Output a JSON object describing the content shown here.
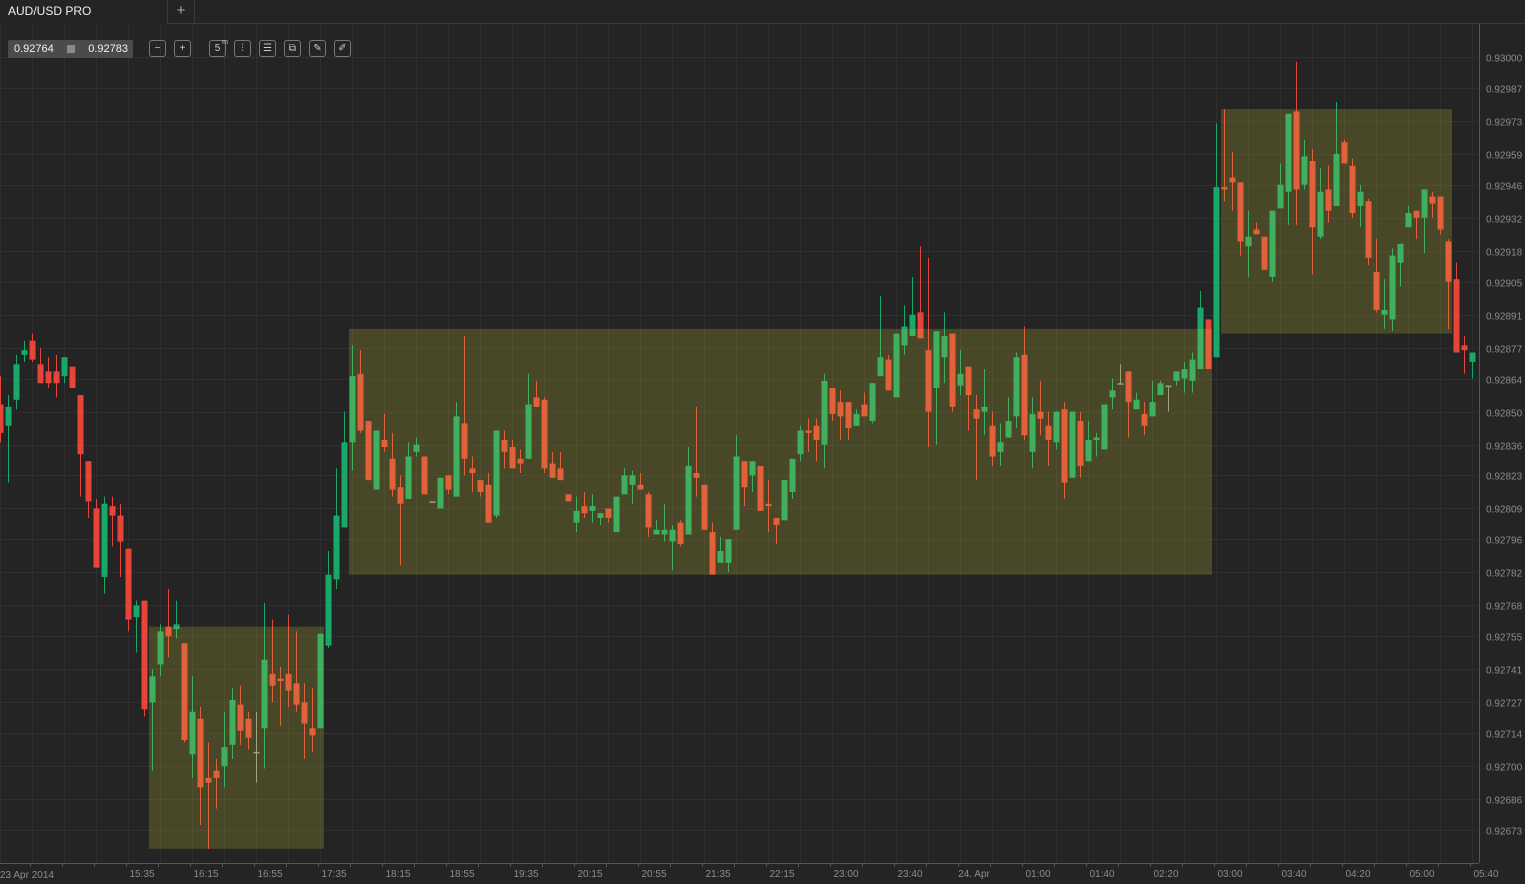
{
  "tabs": [
    {
      "label": "AUD/USD PRO",
      "active": true
    }
  ],
  "add_tab_label": "+",
  "quote": {
    "bid": "0.92764",
    "ask": "0.92783"
  },
  "toolbar": [
    {
      "icon": "zoom-out-icon",
      "glyph": "−"
    },
    {
      "icon": "zoom-in-icon",
      "glyph": "+"
    },
    {
      "icon": "period-icon",
      "glyph": "5",
      "sup": "m"
    },
    {
      "icon": "candles-icon",
      "glyph": "⫶"
    },
    {
      "icon": "indicators-icon",
      "glyph": "☰"
    },
    {
      "icon": "copy-icon",
      "glyph": "⧉"
    },
    {
      "icon": "edit-icon",
      "glyph": "✎"
    },
    {
      "icon": "draw-icon",
      "glyph": "✐"
    }
  ],
  "colors": {
    "background": "#242424",
    "grid": "#2f2f2f",
    "up": "#1aa868",
    "down": "#e8453a",
    "axis_text": "#8c8c8c",
    "zone": "#c8c83c"
  },
  "chart_data": {
    "type": "candlestick",
    "symbol": "AUD/USD PRO",
    "interval": "5m",
    "grid": true,
    "ylim": [
      0.92659,
      0.93014
    ],
    "y_ticks": [
      "0.93000",
      "0.92987",
      "0.92973",
      "0.92959",
      "0.92946",
      "0.92932",
      "0.92918",
      "0.92905",
      "0.92891",
      "0.92877",
      "0.92864",
      "0.92850",
      "0.92836",
      "0.92823",
      "0.92809",
      "0.92796",
      "0.92782",
      "0.92768",
      "0.92755",
      "0.92741",
      "0.92727",
      "0.92714",
      "0.92700",
      "0.92686",
      "0.92673"
    ],
    "x_start_label": "23 Apr 2014",
    "x_ticks": [
      "15:35",
      "16:15",
      "16:55",
      "17:35",
      "18:15",
      "18:55",
      "19:35",
      "20:15",
      "20:55",
      "21:35",
      "22:15",
      "23:00",
      "23:40",
      "24. Apr",
      "01:00",
      "01:40",
      "02:20",
      "03:00",
      "03:40",
      "04:20",
      "05:00",
      "05:40"
    ],
    "ohlc_fields": [
      "open",
      "high",
      "low",
      "close"
    ],
    "candles": [
      [
        0.92853,
        0.92865,
        0.92837,
        0.92841
      ],
      [
        0.92844,
        0.92857,
        0.9282,
        0.92852
      ],
      [
        0.92855,
        0.92874,
        0.92851,
        0.9287
      ],
      [
        0.92874,
        0.9288,
        0.92871,
        0.92876
      ],
      [
        0.9288,
        0.92883,
        0.92871,
        0.92872
      ],
      [
        0.9287,
        0.92877,
        0.92862,
        0.92862
      ],
      [
        0.92867,
        0.92873,
        0.9286,
        0.92862
      ],
      [
        0.92867,
        0.92874,
        0.92856,
        0.92862
      ],
      [
        0.92865,
        0.92873,
        0.92862,
        0.92873
      ],
      [
        0.92869,
        0.92869,
        0.9286,
        0.9286
      ],
      [
        0.92857,
        0.92857,
        0.92814,
        0.92832
      ],
      [
        0.92829,
        0.92829,
        0.92805,
        0.92812
      ],
      [
        0.92809,
        0.92813,
        0.92784,
        0.92784
      ],
      [
        0.9278,
        0.92814,
        0.92773,
        0.92811
      ],
      [
        0.9281,
        0.92814,
        0.92793,
        0.92806
      ],
      [
        0.92806,
        0.92811,
        0.9278,
        0.92795
      ],
      [
        0.92792,
        0.92792,
        0.92757,
        0.92762
      ],
      [
        0.92763,
        0.9277,
        0.92748,
        0.92768
      ],
      [
        0.9277,
        0.9277,
        0.92721,
        0.92724
      ],
      [
        0.92727,
        0.92741,
        0.92698,
        0.92738
      ],
      [
        0.92743,
        0.9276,
        0.92738,
        0.92757
      ],
      [
        0.92759,
        0.92775,
        0.92746,
        0.92755
      ],
      [
        0.92758,
        0.9277,
        0.92754,
        0.9276
      ],
      [
        0.92752,
        0.92752,
        0.9271,
        0.92711
      ],
      [
        0.92705,
        0.92738,
        0.92695,
        0.92723
      ],
      [
        0.9272,
        0.92725,
        0.92675,
        0.92691
      ],
      [
        0.92695,
        0.9271,
        0.92665,
        0.92693
      ],
      [
        0.92698,
        0.92703,
        0.92682,
        0.92695
      ],
      [
        0.927,
        0.92723,
        0.92691,
        0.92708
      ],
      [
        0.92709,
        0.92733,
        0.92703,
        0.92728
      ],
      [
        0.92726,
        0.92734,
        0.92709,
        0.92715
      ],
      [
        0.9272,
        0.92723,
        0.92707,
        0.92712
      ],
      [
        0.92706,
        0.92723,
        0.92693,
        0.92706
      ],
      [
        0.92716,
        0.92769,
        0.92699,
        0.92745
      ],
      [
        0.92739,
        0.92762,
        0.92727,
        0.92734
      ],
      [
        0.92737,
        0.92742,
        0.92717,
        0.92736
      ],
      [
        0.92739,
        0.92764,
        0.92725,
        0.92732
      ],
      [
        0.92735,
        0.92757,
        0.92723,
        0.92726
      ],
      [
        0.92727,
        0.92735,
        0.92703,
        0.92718
      ],
      [
        0.92716,
        0.92733,
        0.92706,
        0.92713
      ],
      [
        0.92716,
        0.92756,
        0.92716,
        0.92756
      ],
      [
        0.92751,
        0.92791,
        0.9275,
        0.92781
      ],
      [
        0.92779,
        0.92826,
        0.92775,
        0.92806
      ],
      [
        0.92801,
        0.9285,
        0.92801,
        0.92837
      ],
      [
        0.92837,
        0.92878,
        0.92825,
        0.92865
      ],
      [
        0.92866,
        0.92876,
        0.92841,
        0.92842
      ],
      [
        0.92846,
        0.92846,
        0.92821,
        0.92821
      ],
      [
        0.92817,
        0.92842,
        0.92817,
        0.92842
      ],
      [
        0.92838,
        0.92849,
        0.92833,
        0.92835
      ],
      [
        0.9283,
        0.92841,
        0.92814,
        0.92817
      ],
      [
        0.92818,
        0.92823,
        0.92785,
        0.92811
      ],
      [
        0.92813,
        0.92837,
        0.92813,
        0.92831
      ],
      [
        0.92833,
        0.92839,
        0.92831,
        0.92836
      ],
      [
        0.92831,
        0.92831,
        0.92815,
        0.92815
      ],
      [
        0.92812,
        0.92812,
        0.92812,
        0.92812
      ],
      [
        0.92809,
        0.92822,
        0.92809,
        0.92822
      ],
      [
        0.92823,
        0.92823,
        0.92815,
        0.92817
      ],
      [
        0.92814,
        0.92854,
        0.92814,
        0.92848
      ],
      [
        0.92845,
        0.92882,
        0.92823,
        0.9283
      ],
      [
        0.92826,
        0.92831,
        0.92816,
        0.92824
      ],
      [
        0.92821,
        0.92821,
        0.92814,
        0.92816
      ],
      [
        0.92819,
        0.92824,
        0.92803,
        0.92803
      ],
      [
        0.92806,
        0.92842,
        0.92805,
        0.92842
      ],
      [
        0.92838,
        0.92842,
        0.92826,
        0.92833
      ],
      [
        0.92835,
        0.92838,
        0.92826,
        0.92826
      ],
      [
        0.9283,
        0.92834,
        0.92824,
        0.92828
      ],
      [
        0.9283,
        0.92866,
        0.9283,
        0.92853
      ],
      [
        0.92856,
        0.92863,
        0.92852,
        0.92852
      ],
      [
        0.92855,
        0.92856,
        0.92824,
        0.92826
      ],
      [
        0.92828,
        0.92833,
        0.92822,
        0.92822
      ],
      [
        0.92826,
        0.92833,
        0.92821,
        0.92821
      ],
      [
        0.92815,
        0.92815,
        0.92812,
        0.92812
      ],
      [
        0.92803,
        0.92814,
        0.92799,
        0.92808
      ],
      [
        0.9281,
        0.92816,
        0.92805,
        0.92807
      ],
      [
        0.92808,
        0.92815,
        0.92803,
        0.9281
      ],
      [
        0.92805,
        0.92807,
        0.92802,
        0.92807
      ],
      [
        0.92809,
        0.92809,
        0.92803,
        0.92805
      ],
      [
        0.92799,
        0.92814,
        0.92799,
        0.92814
      ],
      [
        0.92815,
        0.92826,
        0.92815,
        0.92823
      ],
      [
        0.92819,
        0.92825,
        0.92811,
        0.92823
      ],
      [
        0.92819,
        0.92824,
        0.92817,
        0.92817
      ],
      [
        0.92815,
        0.92816,
        0.92797,
        0.92801
      ],
      [
        0.92798,
        0.92804,
        0.92798,
        0.928
      ],
      [
        0.92798,
        0.92811,
        0.92795,
        0.928
      ],
      [
        0.92795,
        0.92802,
        0.92783,
        0.928
      ],
      [
        0.92803,
        0.92804,
        0.92793,
        0.92794
      ],
      [
        0.92798,
        0.92835,
        0.92798,
        0.92827
      ],
      [
        0.92824,
        0.92852,
        0.92814,
        0.92822
      ],
      [
        0.92819,
        0.92819,
        0.928,
        0.928
      ],
      [
        0.92799,
        0.92803,
        0.92781,
        0.92781
      ],
      [
        0.92786,
        0.92797,
        0.92786,
        0.92791
      ],
      [
        0.92786,
        0.92796,
        0.92782,
        0.92796
      ],
      [
        0.928,
        0.9284,
        0.928,
        0.92831
      ],
      [
        0.92829,
        0.92829,
        0.9281,
        0.92818
      ],
      [
        0.92823,
        0.92829,
        0.92816,
        0.92829
      ],
      [
        0.92827,
        0.92827,
        0.92808,
        0.92808
      ],
      [
        0.92811,
        0.92821,
        0.92799,
        0.9281
      ],
      [
        0.92805,
        0.92805,
        0.92794,
        0.92802
      ],
      [
        0.92804,
        0.92821,
        0.92804,
        0.92821
      ],
      [
        0.92816,
        0.9283,
        0.92813,
        0.9283
      ],
      [
        0.92832,
        0.92844,
        0.92829,
        0.92842
      ],
      [
        0.92842,
        0.92847,
        0.92833,
        0.92841
      ],
      [
        0.92844,
        0.92847,
        0.92829,
        0.92838
      ],
      [
        0.92836,
        0.92866,
        0.92826,
        0.92863
      ],
      [
        0.9286,
        0.9286,
        0.92846,
        0.92849
      ],
      [
        0.92854,
        0.92859,
        0.92838,
        0.92848
      ],
      [
        0.92854,
        0.92854,
        0.92838,
        0.92843
      ],
      [
        0.92844,
        0.92851,
        0.92844,
        0.92849
      ],
      [
        0.92853,
        0.92858,
        0.92848,
        0.92848
      ],
      [
        0.92846,
        0.92862,
        0.92845,
        0.92862
      ],
      [
        0.92865,
        0.92899,
        0.92865,
        0.92873
      ],
      [
        0.92872,
        0.92874,
        0.92859,
        0.92859
      ],
      [
        0.92856,
        0.92883,
        0.92856,
        0.92883
      ],
      [
        0.92878,
        0.92895,
        0.92874,
        0.92886
      ],
      [
        0.92882,
        0.92907,
        0.92882,
        0.92891
      ],
      [
        0.92892,
        0.9292,
        0.92881,
        0.92881
      ],
      [
        0.92876,
        0.92915,
        0.92835,
        0.9285
      ],
      [
        0.9286,
        0.92884,
        0.92836,
        0.92884
      ],
      [
        0.92873,
        0.92892,
        0.92862,
        0.92882
      ],
      [
        0.92883,
        0.92883,
        0.9285,
        0.92852
      ],
      [
        0.92861,
        0.92876,
        0.92857,
        0.92866
      ],
      [
        0.92869,
        0.92869,
        0.92842,
        0.92857
      ],
      [
        0.92851,
        0.92857,
        0.92821,
        0.92847
      ],
      [
        0.9285,
        0.92868,
        0.9284,
        0.92852
      ],
      [
        0.92844,
        0.9285,
        0.92827,
        0.92831
      ],
      [
        0.92833,
        0.92845,
        0.92827,
        0.92837
      ],
      [
        0.92839,
        0.92856,
        0.92839,
        0.92846
      ],
      [
        0.92848,
        0.92875,
        0.92843,
        0.92873
      ],
      [
        0.92874,
        0.92886,
        0.92838,
        0.9284
      ],
      [
        0.92833,
        0.92856,
        0.92826,
        0.92849
      ],
      [
        0.9285,
        0.92863,
        0.9284,
        0.92847
      ],
      [
        0.92844,
        0.9285,
        0.92827,
        0.92838
      ],
      [
        0.92837,
        0.9285,
        0.92834,
        0.9285
      ],
      [
        0.92851,
        0.92854,
        0.92813,
        0.9282
      ],
      [
        0.92822,
        0.9285,
        0.92822,
        0.9285
      ],
      [
        0.92846,
        0.9285,
        0.92822,
        0.92827
      ],
      [
        0.92829,
        0.92846,
        0.92829,
        0.92838
      ],
      [
        0.92838,
        0.92841,
        0.92831,
        0.92839
      ],
      [
        0.92834,
        0.92853,
        0.92834,
        0.92853
      ],
      [
        0.92856,
        0.92864,
        0.92851,
        0.92859
      ],
      [
        0.92862,
        0.9287,
        0.92862,
        0.92862
      ],
      [
        0.92867,
        0.92867,
        0.92839,
        0.92854
      ],
      [
        0.92851,
        0.92858,
        0.92851,
        0.92855
      ],
      [
        0.92849,
        0.92854,
        0.9284,
        0.92844
      ],
      [
        0.92848,
        0.92863,
        0.92848,
        0.92854
      ],
      [
        0.92857,
        0.92863,
        0.92857,
        0.92862
      ],
      [
        0.92861,
        0.92861,
        0.9285,
        0.92861
      ],
      [
        0.92863,
        0.92867,
        0.92861,
        0.92867
      ],
      [
        0.92864,
        0.92871,
        0.92858,
        0.92868
      ],
      [
        0.92863,
        0.92875,
        0.92858,
        0.92872
      ],
      [
        0.92868,
        0.92901,
        0.92868,
        0.92894
      ],
      [
        0.92889,
        0.92889,
        0.92868,
        0.92868
      ],
      [
        0.92873,
        0.92972,
        0.92873,
        0.92945
      ],
      [
        0.92945,
        0.92978,
        0.92939,
        0.92944
      ],
      [
        0.92949,
        0.9296,
        0.92935,
        0.92947
      ],
      [
        0.92947,
        0.92947,
        0.92916,
        0.92922
      ],
      [
        0.9292,
        0.92935,
        0.92907,
        0.92924
      ],
      [
        0.92927,
        0.9293,
        0.92925,
        0.92925
      ],
      [
        0.92924,
        0.92924,
        0.9291,
        0.9291
      ],
      [
        0.92907,
        0.92935,
        0.92905,
        0.92935
      ],
      [
        0.92936,
        0.92955,
        0.92936,
        0.92946
      ],
      [
        0.92943,
        0.92976,
        0.92929,
        0.92976
      ],
      [
        0.92977,
        0.92998,
        0.92929,
        0.92944
      ],
      [
        0.92946,
        0.92965,
        0.92944,
        0.92958
      ],
      [
        0.92956,
        0.92961,
        0.92908,
        0.92928
      ],
      [
        0.92924,
        0.92953,
        0.92923,
        0.92943
      ],
      [
        0.92944,
        0.92954,
        0.9293,
        0.92935
      ],
      [
        0.92937,
        0.92981,
        0.92937,
        0.92959
      ],
      [
        0.92964,
        0.92965,
        0.92955,
        0.92955
      ],
      [
        0.92954,
        0.92957,
        0.92932,
        0.92934
      ],
      [
        0.92937,
        0.92946,
        0.92928,
        0.92943
      ],
      [
        0.92939,
        0.9294,
        0.92912,
        0.92915
      ],
      [
        0.92909,
        0.92923,
        0.92892,
        0.92893
      ],
      [
        0.92891,
        0.92906,
        0.92885,
        0.92893
      ],
      [
        0.92889,
        0.92919,
        0.92884,
        0.92916
      ],
      [
        0.92913,
        0.92921,
        0.92903,
        0.92921
      ],
      [
        0.92928,
        0.92937,
        0.92928,
        0.92934
      ],
      [
        0.92935,
        0.92935,
        0.92923,
        0.92932
      ],
      [
        0.92932,
        0.92944,
        0.92917,
        0.92944
      ],
      [
        0.92941,
        0.92943,
        0.92932,
        0.92938
      ],
      [
        0.92941,
        0.92941,
        0.92925,
        0.92927
      ],
      [
        0.92922,
        0.92923,
        0.92885,
        0.92905
      ],
      [
        0.92906,
        0.92913,
        0.92875,
        0.92875
      ],
      [
        0.92878,
        0.92882,
        0.92866,
        0.92876
      ],
      [
        0.92871,
        0.92875,
        0.92864,
        0.92875
      ]
    ],
    "zones": [
      {
        "start_candle": 19,
        "end_candle": 40,
        "top": 0.92759,
        "bottom": 0.92665
      },
      {
        "start_candle": 44,
        "end_candle": 151,
        "top": 0.92885,
        "bottom": 0.92781
      },
      {
        "start_candle": 153,
        "end_candle": 181,
        "top": 0.92978,
        "bottom": 0.92883
      }
    ]
  }
}
